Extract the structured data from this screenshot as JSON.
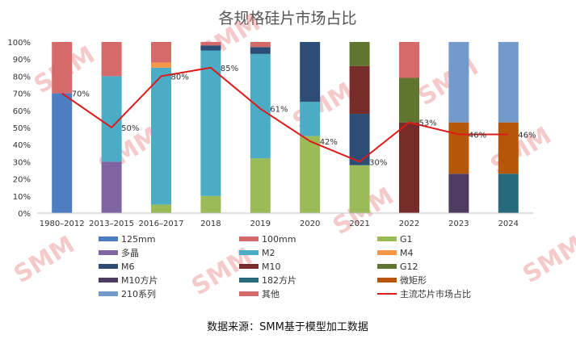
{
  "chart_data": {
    "type": "bar",
    "stacked": true,
    "title": "各规格硅片市场占比",
    "categories": [
      "1980–2012",
      "2013–2015",
      "2016–2017",
      "2018",
      "2019",
      "2020",
      "2021",
      "2022",
      "2023",
      "2024"
    ],
    "yticks": [
      "0%",
      "10%",
      "20%",
      "30%",
      "40%",
      "50%",
      "60%",
      "70%",
      "80%",
      "90%",
      "100%"
    ],
    "ylim": [
      0,
      100
    ],
    "grid": false,
    "legend_position": "bottom",
    "series": [
      {
        "name": "125mm",
        "color": "#4e7ec2",
        "values": [
          70,
          0,
          0,
          0,
          0,
          0,
          0,
          0,
          0,
          0
        ]
      },
      {
        "name": "100mm",
        "color": "#d46a6a",
        "values": [
          0,
          0,
          0,
          0,
          0,
          0,
          0,
          0,
          0,
          0
        ]
      },
      {
        "name": "G1",
        "color": "#9bbb59",
        "values": [
          0,
          0,
          5,
          10,
          32,
          45,
          28,
          0,
          0,
          0
        ]
      },
      {
        "name": "多晶",
        "color": "#8064a2",
        "values": [
          0,
          30,
          0,
          0,
          0,
          0,
          0,
          0,
          0,
          0
        ]
      },
      {
        "name": "M2",
        "color": "#4bacc6",
        "values": [
          0,
          50,
          80,
          85,
          61,
          20,
          0,
          0,
          0,
          0
        ]
      },
      {
        "name": "M4",
        "color": "#f79646",
        "values": [
          0,
          0,
          3,
          0,
          0,
          0,
          0,
          0,
          0,
          0
        ]
      },
      {
        "name": "M6",
        "color": "#2c4d75",
        "values": [
          0,
          0,
          0,
          3,
          4,
          35,
          30,
          0,
          0,
          0
        ]
      },
      {
        "name": "M10",
        "color": "#772c2a",
        "values": [
          0,
          0,
          0,
          0,
          0,
          0,
          28,
          53,
          0,
          0
        ]
      },
      {
        "name": "G12",
        "color": "#5f7530",
        "values": [
          0,
          0,
          0,
          0,
          0,
          0,
          14,
          26,
          0,
          0
        ]
      },
      {
        "name": "M10方片",
        "color": "#4d3b62",
        "values": [
          0,
          0,
          0,
          0,
          0,
          0,
          0,
          0,
          23,
          0
        ]
      },
      {
        "name": "182方片",
        "color": "#276a7c",
        "values": [
          0,
          0,
          0,
          0,
          0,
          0,
          0,
          0,
          0,
          23
        ]
      },
      {
        "name": "微矩形",
        "color": "#b65708",
        "values": [
          0,
          0,
          0,
          0,
          0,
          0,
          0,
          0,
          30,
          30
        ]
      },
      {
        "name": "210系列",
        "color": "#729aca",
        "values": [
          0,
          0,
          0,
          0,
          0,
          0,
          0,
          0,
          47,
          47
        ]
      },
      {
        "name": "其他",
        "color": "#d46a6a",
        "values": [
          30,
          20,
          12,
          2,
          3,
          0,
          0,
          21,
          0,
          0
        ]
      }
    ],
    "line": {
      "name": "主流芯片市场占比",
      "color": "#dd1b1b",
      "values": [
        70,
        50,
        80,
        85,
        61,
        42,
        30,
        53,
        46,
        46
      ],
      "labels": [
        "70%",
        "50%",
        "80%",
        "85%",
        "61%",
        "42%",
        "30%",
        "53%",
        "46%",
        "46%"
      ]
    },
    "source": "数据来源：SMM基于模型加工数据",
    "watermark": "SMM"
  }
}
